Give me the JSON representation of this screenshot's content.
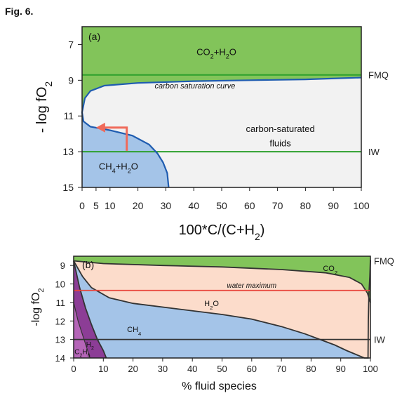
{
  "figure": {
    "label": "Fig. 6."
  },
  "colors": {
    "green": "#82c45a",
    "blue": "#a4c4e8",
    "grey": "#f2f2f2",
    "peach": "#fcdccb",
    "purple": "#8c3d96",
    "line_green": "#2ca02c",
    "line_red": "#e8453c",
    "curve": "#1f5cb0",
    "arrow": "#f06a5a",
    "line_dark": "#333333",
    "label_red": "#d43a2a",
    "label_blue": "#1f5cb0",
    "label_green": "#1f7a3a"
  },
  "chart_data": [
    {
      "type": "area",
      "panel": "(a)",
      "xlabel": "100*C/(C+H",
      "xlabel_sub": "2",
      "xlabel_end": ")",
      "ylabel": "- log fO",
      "ylabel_sub": "2",
      "xlim": [
        0,
        100
      ],
      "ylim": [
        15,
        6
      ],
      "y_inverted": true,
      "xticks": [
        0,
        5,
        10,
        20,
        30,
        40,
        50,
        60,
        70,
        80,
        90,
        100
      ],
      "yticks": [
        7,
        9,
        11,
        13,
        15
      ],
      "reference_lines": [
        {
          "name": "FMQ",
          "y": 8.7
        },
        {
          "name": "IW",
          "y": 13.0
        }
      ],
      "carbon_saturation_curve": {
        "label": "carbon saturation curve",
        "points": [
          [
            100,
            8.85
          ],
          [
            80,
            8.95
          ],
          [
            60,
            9.0
          ],
          [
            40,
            9.05
          ],
          [
            20,
            9.15
          ],
          [
            8,
            9.3
          ],
          [
            3,
            9.6
          ],
          [
            1,
            10.0
          ],
          [
            0,
            10.8
          ],
          [
            0.5,
            11.3
          ],
          [
            3,
            11.6
          ],
          [
            10,
            11.8
          ],
          [
            18,
            12.1
          ],
          [
            24,
            12.6
          ],
          [
            27,
            13.1
          ],
          [
            29,
            13.6
          ],
          [
            30.5,
            14.2
          ],
          [
            31,
            15
          ]
        ]
      },
      "region_labels": [
        {
          "text": "CO",
          "sub": "2",
          "rest": "+H",
          "sub2": "2",
          "end": "O"
        },
        {
          "text": "CH",
          "sub": "4",
          "rest": "+H",
          "sub2": "2",
          "end": "O"
        },
        {
          "line1": "carbon-saturated",
          "line2": "fluids"
        }
      ],
      "arrow": {
        "from": [
          16,
          12.95
        ],
        "corner": [
          16,
          11.65
        ],
        "to": [
          5,
          11.65
        ]
      }
    },
    {
      "type": "area",
      "panel": "(b)",
      "xlabel": "% fluid species",
      "ylabel": "-log fO",
      "ylabel_sub": "2",
      "xlim": [
        0,
        100
      ],
      "ylim": [
        14,
        8.5
      ],
      "y_inverted": true,
      "xticks": [
        0,
        10,
        20,
        30,
        40,
        50,
        60,
        70,
        80,
        90,
        100
      ],
      "yticks": [
        9,
        10,
        11,
        12,
        13,
        14
      ],
      "reference_lines": [
        {
          "name": "FMQ",
          "y": 8.75
        },
        {
          "name": "IW",
          "y": 13.0
        },
        {
          "name": "water maximum",
          "y": 10.35
        }
      ],
      "boundaries": {
        "co2_h2o": [
          [
            0,
            8.75
          ],
          [
            10,
            8.9
          ],
          [
            30,
            9.0
          ],
          [
            50,
            9.08
          ],
          [
            70,
            9.22
          ],
          [
            85,
            9.4
          ],
          [
            93,
            9.65
          ],
          [
            97,
            10.0
          ],
          [
            99,
            10.5
          ],
          [
            100,
            11.0
          ]
        ],
        "h2o_ch4": [
          [
            0,
            8.75
          ],
          [
            3,
            9.6
          ],
          [
            6,
            10.2
          ],
          [
            12,
            10.75
          ],
          [
            20,
            11.05
          ],
          [
            35,
            11.35
          ],
          [
            50,
            11.65
          ],
          [
            60,
            11.9
          ],
          [
            70,
            12.3
          ],
          [
            78,
            12.7
          ],
          [
            83,
            13.0
          ],
          [
            88,
            13.3
          ],
          [
            92,
            13.6
          ],
          [
            98,
            14.0
          ],
          [
            99.2,
            14.0
          ],
          [
            99.3,
            12.0
          ],
          [
            99.5,
            10.5
          ],
          [
            99.8,
            9.6
          ],
          [
            100,
            8.7
          ]
        ],
        "ch4_h2": [
          [
            0,
            8.75
          ],
          [
            2,
            10.2
          ],
          [
            4,
            11.3
          ],
          [
            6,
            12.2
          ],
          [
            8,
            13.0
          ],
          [
            10,
            13.6
          ],
          [
            11,
            14.0
          ]
        ],
        "h2_c2h6": [
          [
            0,
            11.0
          ],
          [
            1.5,
            12.0
          ],
          [
            3.5,
            13.0
          ],
          [
            5.5,
            14.0
          ]
        ]
      },
      "region_labels": [
        {
          "text": "CO",
          "sub": "2"
        },
        {
          "text": "H",
          "sub": "2",
          "end": "O"
        },
        {
          "text": "CH",
          "sub": "4"
        },
        {
          "text": "H",
          "sub": "2"
        },
        {
          "text": "C",
          "sub": "2",
          "rest": "H",
          "sub2": "6"
        }
      ]
    }
  ]
}
